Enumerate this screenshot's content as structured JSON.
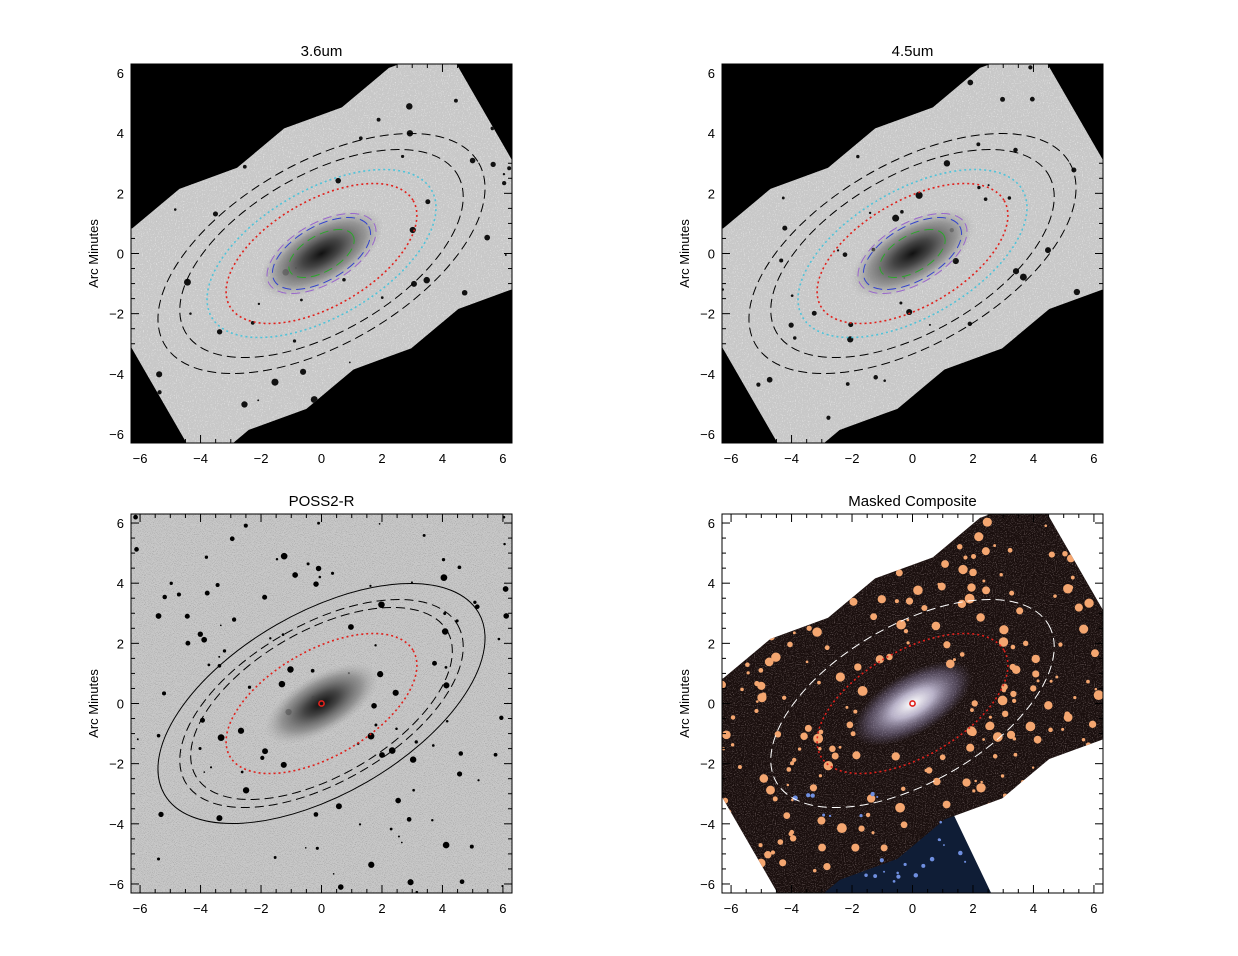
{
  "figure": {
    "colors": {
      "noise_bg": "#c8c8c8",
      "mask_black": "#000000",
      "composite_bg": "#1a0f0e",
      "composite_blue": "#0f1d36",
      "mask_orange": "#f4a670",
      "red": "#e0211c",
      "cyan": "#4fc3d9",
      "purple": "#9966cc",
      "blue": "#3344cc",
      "green": "#2aa62a",
      "black": "#000000",
      "white": "#ffffff"
    }
  },
  "chart_data": [
    {
      "type": "image",
      "title": "3.6um",
      "ylabel": "Arc Minutes",
      "xlabel": "",
      "xlim": [
        -6.3,
        6.3
      ],
      "ylim": [
        -6.3,
        6.3
      ],
      "xticks": [
        -6,
        -4,
        -2,
        0,
        2,
        4,
        6
      ],
      "yticks": [
        -6,
        -4,
        -2,
        0,
        2,
        4,
        6
      ],
      "background": "mosaic",
      "galaxy_center": [
        0,
        0
      ],
      "position_angle_deg": 30,
      "ellipses": [
        {
          "a": 6.0,
          "b": 3.0,
          "style": "dashed",
          "color": "black"
        },
        {
          "a": 5.2,
          "b": 2.6,
          "style": "dashed",
          "color": "black"
        },
        {
          "a": 4.2,
          "b": 2.1,
          "style": "dotted",
          "color": "cyan"
        },
        {
          "a": 3.5,
          "b": 1.75,
          "style": "dotted",
          "color": "red"
        },
        {
          "a": 2.0,
          "b": 1.0,
          "style": "dashed",
          "color": "purple"
        },
        {
          "a": 1.8,
          "b": 0.9,
          "style": "dashed",
          "color": "blue"
        },
        {
          "a": 1.2,
          "b": 0.6,
          "style": "dashed",
          "color": "green"
        }
      ]
    },
    {
      "type": "image",
      "title": "4.5um",
      "ylabel": "Arc Minutes",
      "xlabel": "",
      "xlim": [
        -6.3,
        6.3
      ],
      "ylim": [
        -6.3,
        6.3
      ],
      "xticks": [
        -6,
        -4,
        -2,
        0,
        2,
        4,
        6
      ],
      "yticks": [
        -6,
        -4,
        -2,
        0,
        2,
        4,
        6
      ],
      "background": "mosaic",
      "galaxy_center": [
        0,
        0
      ],
      "position_angle_deg": 30,
      "ellipses": [
        {
          "a": 6.0,
          "b": 3.0,
          "style": "dashed",
          "color": "black"
        },
        {
          "a": 5.2,
          "b": 2.6,
          "style": "dashed",
          "color": "black"
        },
        {
          "a": 4.2,
          "b": 2.1,
          "style": "dotted",
          "color": "cyan"
        },
        {
          "a": 3.5,
          "b": 1.75,
          "style": "dotted",
          "color": "red"
        },
        {
          "a": 2.0,
          "b": 1.0,
          "style": "dashed",
          "color": "purple"
        },
        {
          "a": 1.8,
          "b": 0.9,
          "style": "dashed",
          "color": "blue"
        },
        {
          "a": 1.2,
          "b": 0.6,
          "style": "dashed",
          "color": "green"
        }
      ]
    },
    {
      "type": "image",
      "title": "POSS2-R",
      "ylabel": "Arc Minutes",
      "xlabel": "",
      "xlim": [
        -6.3,
        6.3
      ],
      "ylim": [
        -6.3,
        6.3
      ],
      "xticks": [
        -6,
        -4,
        -2,
        0,
        2,
        4,
        6
      ],
      "yticks": [
        -6,
        -4,
        -2,
        0,
        2,
        4,
        6
      ],
      "background": "full",
      "galaxy_center": [
        0,
        0
      ],
      "center_marker": true,
      "position_angle_deg": 30,
      "ellipses": [
        {
          "a": 6.0,
          "b": 3.0,
          "style": "solid",
          "color": "black"
        },
        {
          "a": 5.2,
          "b": 2.6,
          "style": "dashed",
          "color": "black"
        },
        {
          "a": 4.8,
          "b": 2.4,
          "style": "dashed",
          "color": "black"
        },
        {
          "a": 3.5,
          "b": 1.75,
          "style": "dotted",
          "color": "red"
        }
      ]
    },
    {
      "type": "image",
      "title": "Masked Composite",
      "ylabel": "Arc Minutes",
      "xlabel": "",
      "xlim": [
        -6.3,
        6.3
      ],
      "ylim": [
        -6.3,
        6.3
      ],
      "xticks": [
        -6,
        -4,
        -2,
        0,
        2,
        4,
        6
      ],
      "yticks": [
        -6,
        -4,
        -2,
        0,
        2,
        4,
        6
      ],
      "background": "composite",
      "galaxy_center": [
        0,
        0
      ],
      "center_marker": true,
      "position_angle_deg": 30,
      "ellipses": [
        {
          "a": 5.2,
          "b": 2.6,
          "style": "dashed",
          "color": "white"
        },
        {
          "a": 3.5,
          "b": 1.75,
          "style": "dotted",
          "color": "red"
        }
      ]
    }
  ]
}
